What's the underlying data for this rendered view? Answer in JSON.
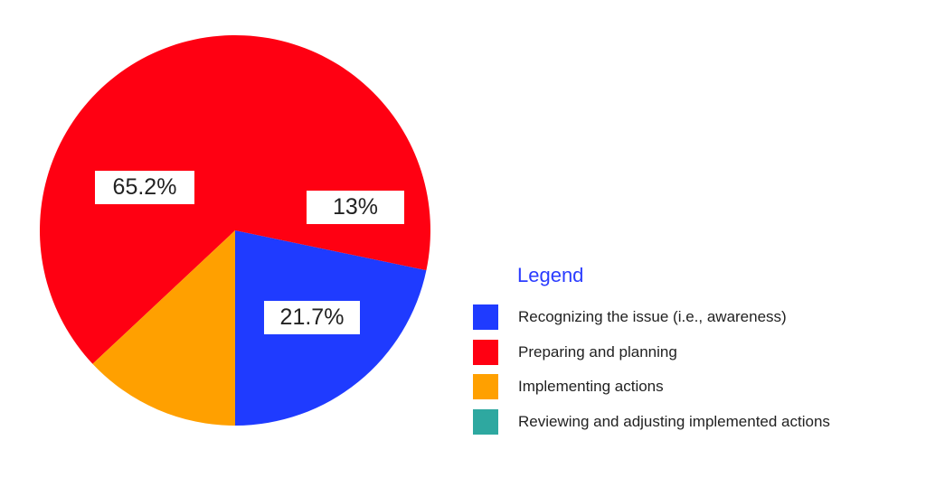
{
  "chart_data": {
    "type": "pie",
    "title": "",
    "legend_title": "Legend",
    "legend_placement": "right",
    "slices": [
      {
        "label": "Recognizing the issue (i.e., awareness)",
        "value": 21.7,
        "display": "21.7%",
        "color": "#1f3bff"
      },
      {
        "label": "Preparing and planning",
        "value": 65.2,
        "display": "65.2%",
        "color": "#ff0012"
      },
      {
        "label": "Implementing actions",
        "value": 13,
        "display": "13%",
        "color": "#ffa000"
      },
      {
        "label": "Reviewing and adjusting implemented actions",
        "value": 0,
        "display": "",
        "color": "#2ea8a0"
      }
    ]
  }
}
